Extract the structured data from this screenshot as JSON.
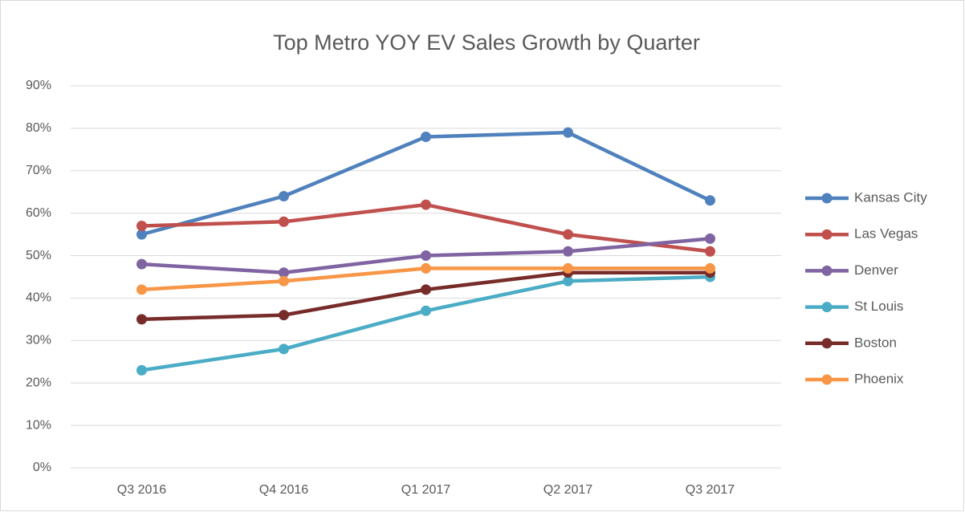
{
  "chart_data": {
    "type": "line",
    "title": "Top Metro YOY EV Sales Growth by Quarter",
    "categories": [
      "Q3 2016",
      "Q4 2016",
      "Q1 2017",
      "Q2 2017",
      "Q3 2017"
    ],
    "series": [
      {
        "name": "Kansas City",
        "color": "#4f81bd",
        "values": [
          55,
          64,
          78,
          79,
          63
        ]
      },
      {
        "name": "Las Vegas",
        "color": "#c0504d",
        "values": [
          57,
          58,
          62,
          55,
          51
        ]
      },
      {
        "name": "Denver",
        "color": "#8064a2",
        "values": [
          48,
          46,
          50,
          51,
          54
        ]
      },
      {
        "name": "St Louis",
        "color": "#4bacc6",
        "values": [
          23,
          28,
          37,
          44,
          45
        ]
      },
      {
        "name": "Boston",
        "color": "#772c2a",
        "values": [
          35,
          36,
          42,
          46,
          46
        ]
      },
      {
        "name": "Phoenix",
        "color": "#f79646",
        "values": [
          42,
          44,
          47,
          47,
          47
        ]
      }
    ],
    "ylim": [
      0,
      90
    ],
    "yticks": [
      {
        "value": 0,
        "label": "0%"
      },
      {
        "value": 10,
        "label": "10%"
      },
      {
        "value": 20,
        "label": "20%"
      },
      {
        "value": 30,
        "label": "30%"
      },
      {
        "value": 40,
        "label": "40%"
      },
      {
        "value": 50,
        "label": "50%"
      },
      {
        "value": 60,
        "label": "60%"
      },
      {
        "value": 70,
        "label": "70%"
      },
      {
        "value": 80,
        "label": "80%"
      },
      {
        "value": 90,
        "label": "90%"
      }
    ],
    "grid": true,
    "legend": "right"
  }
}
